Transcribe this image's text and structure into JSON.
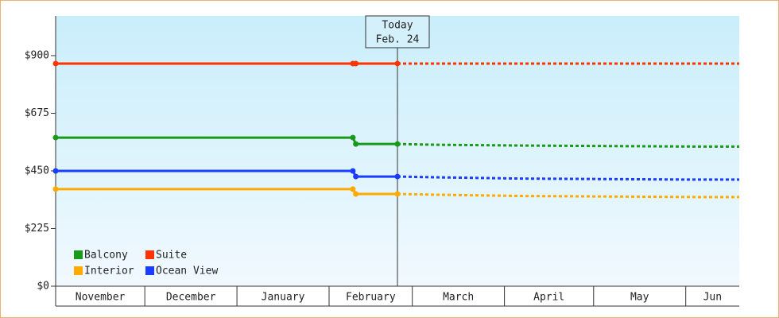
{
  "chart_data": {
    "type": "line",
    "x": [
      0,
      100,
      101,
      115,
      128,
      157,
      216,
      230
    ],
    "xlim": [
      0,
      230
    ],
    "xticks": [
      {
        "value": 0,
        "label": "November"
      },
      {
        "value": 30,
        "label": "December"
      },
      {
        "value": 61,
        "label": "January"
      },
      {
        "value": 92,
        "label": "February"
      },
      {
        "value": 120,
        "label": "March"
      },
      {
        "value": 151,
        "label": "April"
      },
      {
        "value": 181,
        "label": "May"
      },
      {
        "value": 212,
        "label": "Jun"
      }
    ],
    "ylim": [
      0,
      1055
    ],
    "yticks": [
      {
        "value": 0,
        "label": "$0"
      },
      {
        "value": 225,
        "label": "$225"
      },
      {
        "value": 450,
        "label": "$450"
      },
      {
        "value": 675,
        "label": "$675"
      },
      {
        "value": 900,
        "label": "$900"
      }
    ],
    "series": [
      {
        "name": "Balcony",
        "color": "#1a9a1a",
        "values": [
          580,
          580,
          555,
          555,
          552,
          549,
          545,
          545
        ]
      },
      {
        "name": "Suite",
        "color": "#ff3300",
        "values": [
          869,
          869,
          869,
          869,
          869,
          869,
          869,
          869
        ]
      },
      {
        "name": "Interior",
        "color": "#ffaa00",
        "values": [
          379,
          379,
          360,
          360,
          357,
          352,
          348,
          348
        ]
      },
      {
        "name": "Ocean View",
        "color": "#1a3cff",
        "values": [
          450,
          450,
          428,
          428,
          425,
          420,
          416,
          416
        ]
      }
    ],
    "annotation": {
      "x": 115,
      "text": "Today",
      "date": "Feb. 24"
    },
    "legend": "bottom-left"
  }
}
